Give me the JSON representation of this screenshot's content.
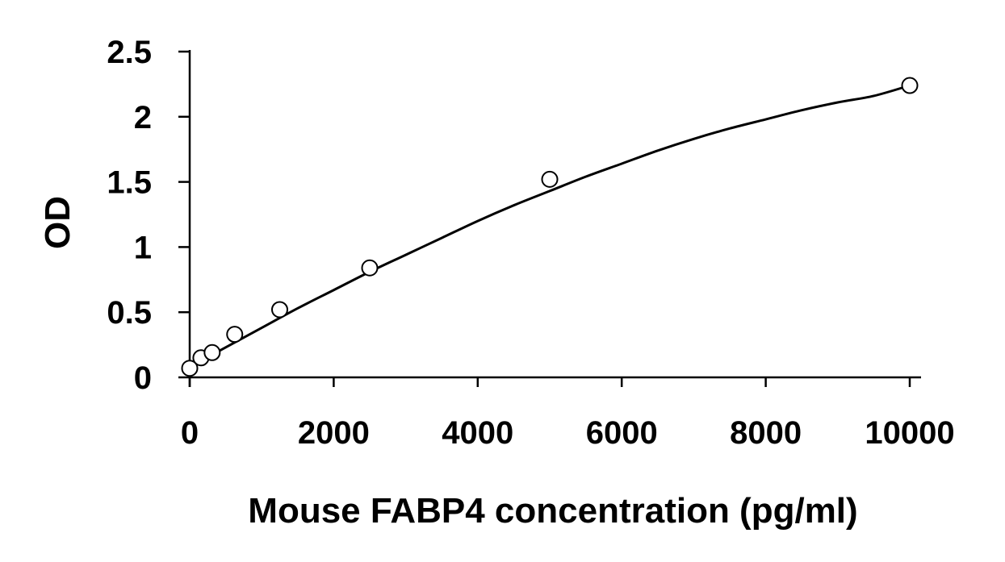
{
  "chart_data": {
    "type": "scatter",
    "title": "",
    "xlabel": "Mouse FABP4 concentration (pg/ml)",
    "ylabel": "OD",
    "xlim": [
      0,
      10000
    ],
    "ylim": [
      0,
      2.5
    ],
    "x_ticks": [
      0,
      2000,
      4000,
      6000,
      8000,
      10000
    ],
    "y_ticks": [
      0,
      0.5,
      1,
      1.5,
      2,
      2.5
    ],
    "x_tick_labels": [
      "0",
      "2000",
      "4000",
      "6000",
      "8000",
      "10000"
    ],
    "y_tick_labels": [
      "0",
      "0.5",
      "1",
      "1.5",
      "2",
      "2.5"
    ],
    "grid": false,
    "legend": "none",
    "series": [
      {
        "x": [
          0,
          156,
          312,
          625,
          1250,
          2500,
          5000,
          10000
        ],
        "y": [
          0.07,
          0.15,
          0.19,
          0.33,
          0.52,
          0.84,
          1.52,
          2.24
        ],
        "marker": "open-circle",
        "color": "#000000"
      }
    ],
    "trendline": {
      "type": "polynomial",
      "x": [
        0,
        500,
        1000,
        1500,
        2000,
        2500,
        3000,
        3500,
        4000,
        4500,
        5000,
        5500,
        6000,
        6500,
        7000,
        7500,
        8000,
        8500,
        9000,
        9500,
        10000
      ],
      "y": [
        0.08,
        0.23,
        0.38,
        0.53,
        0.67,
        0.81,
        0.94,
        1.07,
        1.2,
        1.32,
        1.43,
        1.54,
        1.64,
        1.74,
        1.83,
        1.91,
        1.98,
        2.05,
        2.11,
        2.16,
        2.24
      ],
      "color": "#000000"
    },
    "colors": {
      "axis": "#000000",
      "text": "#000000",
      "background": "#ffffff"
    }
  }
}
